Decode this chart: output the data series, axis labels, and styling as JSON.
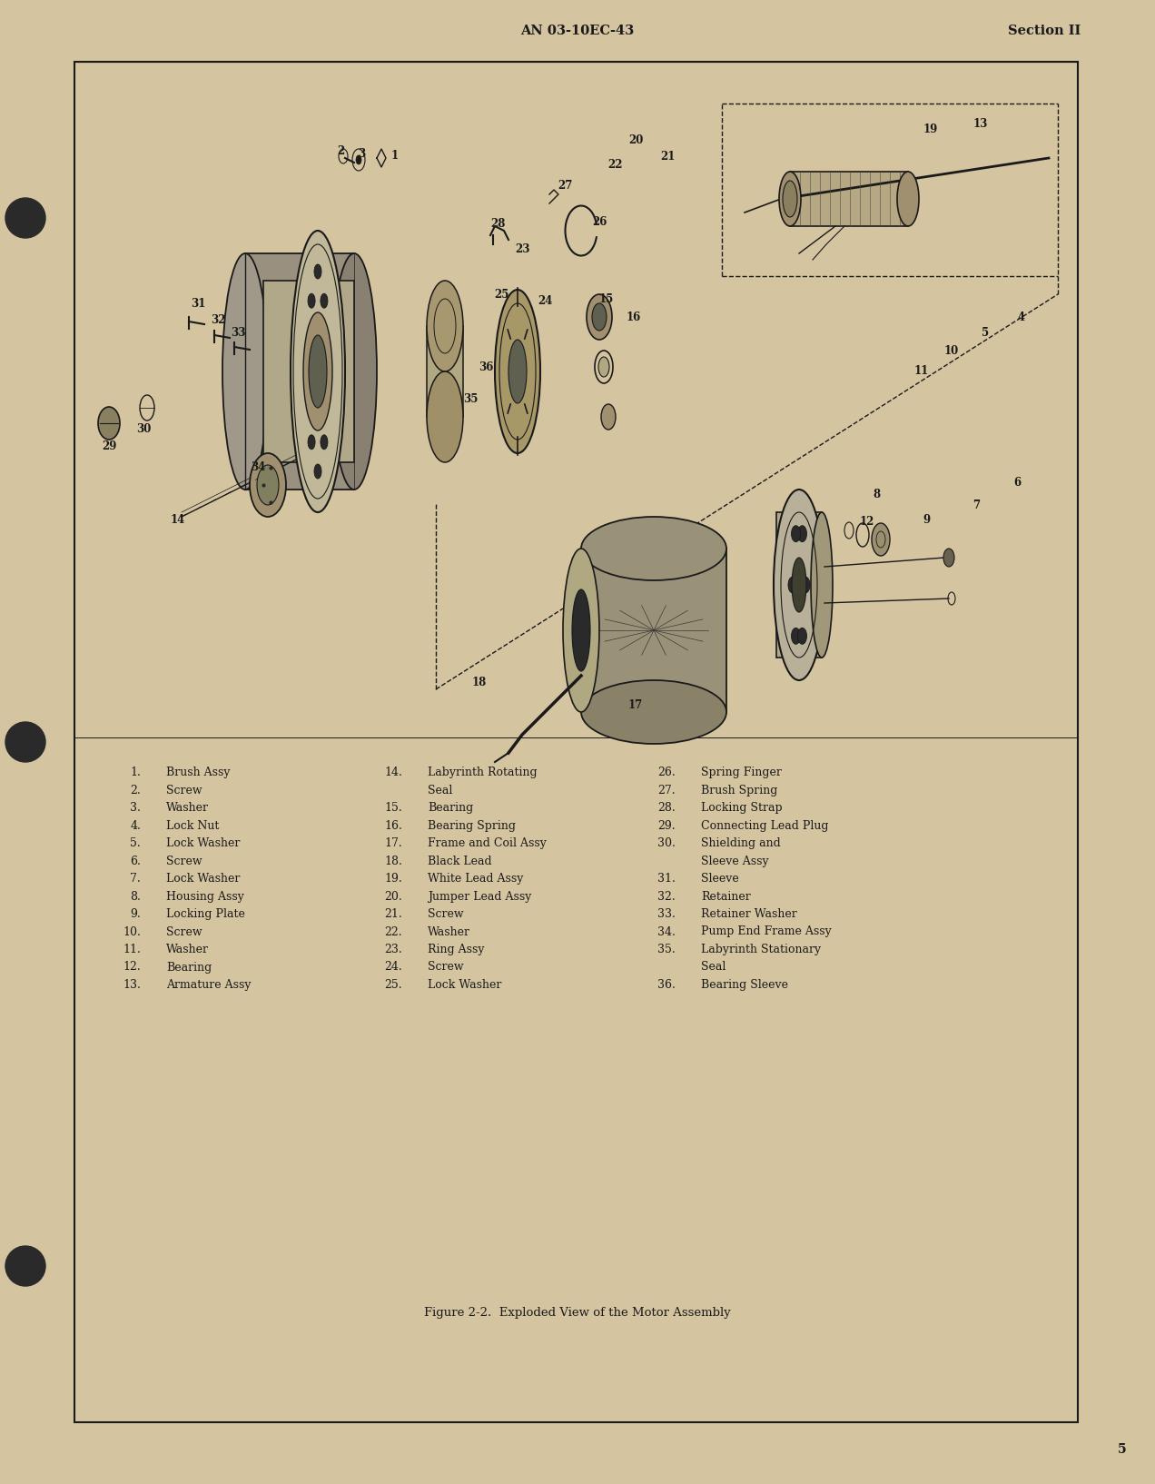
{
  "bg_color": "#d4c4a0",
  "border_color": "#1a1a1a",
  "text_color": "#1a1a1a",
  "header_left": "AN 03-10EC-43",
  "header_right": "Section II",
  "page_number": "5",
  "figure_caption": "Figure 2-2.  Exploded View of the Motor Assembly",
  "parts_col1": [
    [
      "1.",
      "Brush Assy"
    ],
    [
      "2.",
      "Screw"
    ],
    [
      "3.",
      "Washer"
    ],
    [
      "4.",
      "Lock Nut"
    ],
    [
      "5.",
      "Lock Washer"
    ],
    [
      "6.",
      "Screw"
    ],
    [
      "7.",
      "Lock Washer"
    ],
    [
      "8.",
      "Housing Assy"
    ],
    [
      "9.",
      "Locking Plate"
    ],
    [
      "10.",
      "Screw"
    ],
    [
      "11.",
      "Washer"
    ],
    [
      "12.",
      "Bearing"
    ],
    [
      "13.",
      "Armature Assy"
    ]
  ],
  "parts_col2": [
    [
      "14.",
      "Labyrinth Rotating"
    ],
    [
      "",
      "Seal"
    ],
    [
      "15.",
      "Bearing"
    ],
    [
      "16.",
      "Bearing Spring"
    ],
    [
      "17.",
      "Frame and Coil Assy"
    ],
    [
      "18.",
      "Black Lead"
    ],
    [
      "19.",
      "White Lead Assy"
    ],
    [
      "20.",
      "Jumper Lead Assy"
    ],
    [
      "21.",
      "Screw"
    ],
    [
      "22.",
      "Washer"
    ],
    [
      "23.",
      "Ring Assy"
    ],
    [
      "24.",
      "Screw"
    ],
    [
      "25.",
      "Lock Washer"
    ]
  ],
  "parts_col3": [
    [
      "26.",
      "Spring Finger"
    ],
    [
      "27.",
      "Brush Spring"
    ],
    [
      "28.",
      "Locking Strap"
    ],
    [
      "29.",
      "Connecting Lead Plug"
    ],
    [
      "30.",
      "Shielding and"
    ],
    [
      "",
      "Sleeve Assy"
    ],
    [
      "31.",
      "Sleeve"
    ],
    [
      "32.",
      "Retainer"
    ],
    [
      "33.",
      "Retainer Washer"
    ],
    [
      "34.",
      "Pump End Frame Assy"
    ],
    [
      "35.",
      "Labyrinth Stationary"
    ],
    [
      "",
      "Seal"
    ],
    [
      "36.",
      "Bearing Sleeve"
    ]
  ],
  "font_size_header": 10.5,
  "font_size_parts": 9.0,
  "font_size_caption": 9.5,
  "font_size_page": 10,
  "font_size_callout": 8.5
}
